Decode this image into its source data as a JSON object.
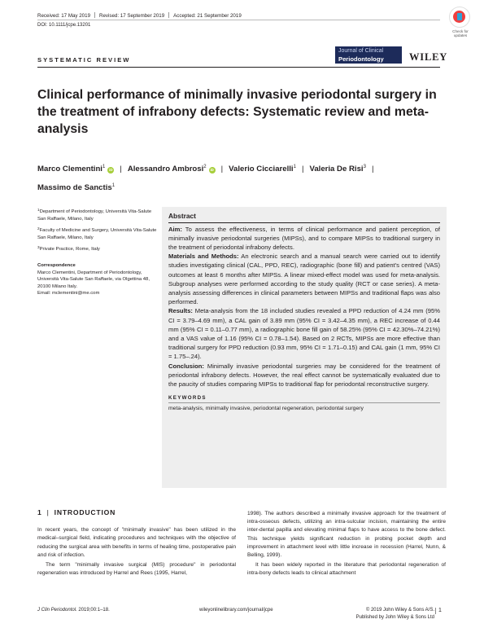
{
  "header": {
    "received": "Received: 17 May 2019",
    "revised": "Revised: 17 September 2019",
    "accepted": "Accepted: 21 September 2019",
    "doi": "DOI: 10.1111/jcpe.13201",
    "crossmark_line1": "Check for",
    "crossmark_line2": "updates",
    "section_label": "SYSTEMATIC REVIEW",
    "journal_line1": "Journal of Clinical",
    "journal_line2": "Periodontology",
    "publisher_logo": "WILEY"
  },
  "article": {
    "title": "Clinical performance of minimally invasive periodontal surgery in the treatment of infrabony defects: Systematic review and meta-analysis",
    "authors": [
      {
        "name": "Marco Clementini",
        "sup": "1",
        "orcid": true
      },
      {
        "name": "Alessandro Ambrosi",
        "sup": "2",
        "orcid": true
      },
      {
        "name": "Valerio Cicciarelli",
        "sup": "1",
        "orcid": false
      },
      {
        "name": "Valeria De Risi",
        "sup": "3",
        "orcid": false
      },
      {
        "name": "Massimo de Sanctis",
        "sup": "1",
        "orcid": false
      }
    ],
    "orcid_label": "iD",
    "author_separator": "|"
  },
  "affiliations": [
    {
      "sup": "1",
      "text": "Department of Periodontology, Università Vita-Salute San Raffaele, Milano, Italy"
    },
    {
      "sup": "2",
      "text": "Faculty of Medicine and Surgery, Università Vita-Salute San Raffaele, Milano, Italy"
    },
    {
      "sup": "3",
      "text": "Private Practice, Rome, Italy"
    }
  ],
  "correspondence": {
    "heading": "Correspondence",
    "text": "Marco Clementini, Department of Periodontology, Università Vita-Salute San Raffaele, via Olgettina 48, 20100 Milano Italy.",
    "email": "Email: mclementini@me.com"
  },
  "abstract": {
    "heading": "Abstract",
    "aim_label": "Aim:",
    "aim": "To assess the effectiveness, in terms of clinical performance and patient perception, of minimally invasive periodontal surgeries (MIPSs), and to compare MIPSs to traditional surgery in the treatment of periodontal infrabony defects.",
    "methods_label": "Materials and Methods:",
    "methods": "An electronic search and a manual search were carried out to identify studies investigating clinical (CAL, PPD, REC), radiographic (bone fill) and patient's centred (VAS) outcomes at least 6 months after MIPSs. A linear mixed-effect model was used for meta-analysis. Subgroup analyses were performed according to the study quality (RCT or case series). A meta-analysis assessing differences in clinical parameters between MIPSs and traditional flaps was also performed.",
    "results_label": "Results:",
    "results": "Meta-analysis from the 18 included studies revealed a PPD reduction of 4.24 mm (95% CI = 3.79–4.69 mm), a CAL gain of 3.89 mm (95% CI = 3.42–4.35 mm), a REC increase of 0.44 mm (95% CI = 0.11–0.77 mm), a radiographic bone fill gain of 58.25% (95% CI = 42.30%–74.21%) and a VAS value of 1.16 (95% CI = 0.78–1.54). Based on 2 RCTs, MIPSs are more effective than traditional surgery for PPD reduction (0.93 mm, 95% CI = 1.71–0.15) and CAL gain (1 mm, 95% CI = 1.75–.24).",
    "conclusion_label": "Conclusion:",
    "conclusion": "Minimally invasive periodontal surgeries may be considered for the treatment of periodontal infrabony defects. However, the real effect cannot be systematically evaluated due to the paucity of studies comparing MIPSs to traditional flap for periodontal reconstructive surgery.",
    "keywords_heading": "KEYWORDS",
    "keywords": "meta-analysis, minimally invasive, periodontal regeneration, periodontal surgery"
  },
  "introduction": {
    "number": "1",
    "bar": "|",
    "heading": "INTRODUCTION",
    "left_p1": "In recent years, the concept of \"minimally invasive\" has been utilized in the medical–surgical field, indicating procedures and techniques with the objective of reducing the surgical area with benefits in terms of healing time, postoperative pain and risk of infection.",
    "left_p2": "The term \"minimally invasive surgical (MIS) procedure\" in periodontal regeneration was introduced by Harrel and Rees (1995, Harrel,",
    "right_p1": "1998). The authors described a minimally invasive approach for the treatment of intra-osseous defects, utilizing an intra-sulcular incision, maintaining the entire inter-dental papilla and elevating minimal flaps to have access to the bone defect. This technique yields significant reduction in probing pocket depth and improvement in attachment level with little increase in recession (Harrel, Nunn, & Belling, 1999).",
    "right_p2": "It has been widely reported in the literature that periodontal regeneration of intra-bony defects leads to clinical attachment"
  },
  "footer": {
    "citation_journal": "J Clin Periodontol.",
    "citation_rest": " 2019;00:1–18.",
    "url": "wileyonlinelibrary.com/journal/jcpe",
    "copyright": "© 2019 John Wiley & Sons A/S.",
    "publisher": "Published by John Wiley & Sons Ltd",
    "page": "1"
  }
}
